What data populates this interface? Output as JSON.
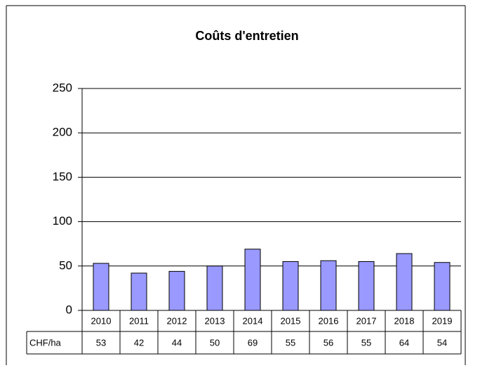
{
  "chart_data": {
    "type": "bar",
    "title": "Coûts d'entretien",
    "categories": [
      "2010",
      "2011",
      "2012",
      "2013",
      "2014",
      "2015",
      "2016",
      "2017",
      "2018",
      "2019"
    ],
    "series": [
      {
        "name": "CHF/ha",
        "color": "#9999ff",
        "values": [
          53,
          42,
          44,
          50,
          69,
          55,
          56,
          55,
          64,
          54
        ]
      }
    ],
    "ylim": [
      0,
      250
    ],
    "yticks": [
      0,
      50,
      100,
      150,
      200,
      250
    ],
    "grid": true
  }
}
